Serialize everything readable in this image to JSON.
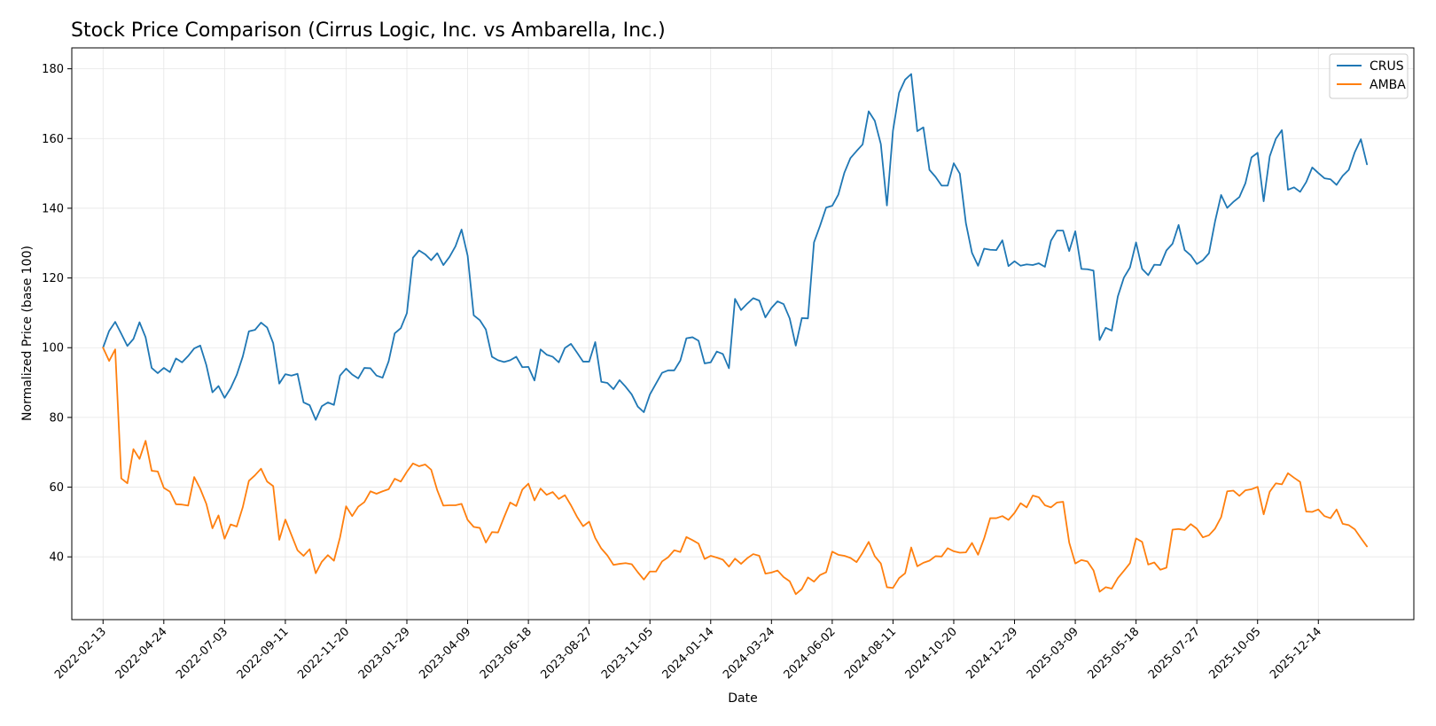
{
  "colors": {
    "CRUS": "#1f77b4",
    "AMBA": "#ff7f0e",
    "grid": "#e6e6e6",
    "axis": "#000000"
  },
  "chart_data": {
    "type": "line",
    "title": "Stock Price Comparison (Cirrus Logic, Inc. vs Ambarella, Inc.)",
    "xlabel": "Date",
    "ylabel": "Normalized Price (base 100)",
    "ylim": [
      22,
      186
    ],
    "xlim": [
      "2022-01-08",
      "2026-04-03"
    ],
    "grid": true,
    "legend_position": "top-right",
    "x_ticks": [
      "2022-02-13",
      "2022-04-24",
      "2022-07-03",
      "2022-09-11",
      "2022-11-20",
      "2023-01-29",
      "2023-04-09",
      "2023-06-18",
      "2023-08-27",
      "2023-11-05",
      "2024-01-14",
      "2024-03-24",
      "2024-06-02",
      "2024-08-11",
      "2024-10-20",
      "2024-12-29",
      "2025-03-09",
      "2025-05-18",
      "2025-07-27",
      "2025-10-05",
      "2025-12-14"
    ],
    "y_ticks": [
      40,
      60,
      80,
      100,
      120,
      140,
      160,
      180
    ],
    "start_date": "2022-02-13",
    "step_days": 7,
    "series": [
      {
        "name": "CRUS",
        "values": [
          100,
          104.8,
          107.4,
          104,
          100.5,
          102.5,
          107.3,
          103,
          94.2,
          92.7,
          94.2,
          93,
          96.9,
          95.8,
          97.6,
          99.8,
          100.6,
          95,
          87.2,
          89,
          85.6,
          88.4,
          92.2,
          97.5,
          104.7,
          105.1,
          107.2,
          105.8,
          101.3,
          89.7,
          92.4,
          92,
          92.5,
          84.3,
          83.5,
          79.3,
          83.2,
          84.3,
          83.6,
          92,
          94,
          92.3,
          91.2,
          94.2,
          94.1,
          92,
          91.4,
          96.1,
          104.1,
          105.6,
          109.9,
          125.8,
          127.9,
          126.8,
          125.1,
          127.1,
          123.7,
          126,
          129.1,
          133.9,
          126.4,
          109.3,
          107.9,
          105.2,
          97.4,
          96.4,
          95.9,
          96.4,
          97.4,
          94.4,
          94.5,
          90.6,
          99.5,
          98,
          97.4,
          95.8,
          99.9,
          101.1,
          98.6,
          96,
          96,
          101.6,
          90.2,
          89.9,
          88.1,
          90.7,
          88.8,
          86.6,
          83.1,
          81.5,
          86.6,
          89.7,
          92.8,
          93.5,
          93.5,
          96.3,
          102.7,
          103,
          102,
          95.5,
          95.8,
          98.9,
          98.2,
          94.1,
          114,
          110.8,
          112.6,
          114.2,
          113.5,
          108.7,
          111.4,
          113.3,
          112.5,
          108.4,
          100.6,
          108.5,
          108.4,
          130.2,
          135,
          140.2,
          140.7,
          143.9,
          150.2,
          154.4,
          156.4,
          158.3,
          167.8,
          165.1,
          158.4,
          140.8,
          162.3,
          173.1,
          176.9,
          178.5,
          162.1,
          163.2,
          151,
          149,
          146.5,
          146.5,
          152.9,
          149.9,
          135.7,
          127.2,
          123.5,
          128.4,
          128.1,
          128,
          130.8,
          123.4,
          124.8,
          123.5,
          123.9,
          123.7,
          124.2,
          123.2,
          130.7,
          133.6,
          133.6,
          127.7,
          133.4,
          122.6,
          122.5,
          122.1,
          102.2,
          105.7,
          104.9,
          114.7,
          120.1,
          123,
          130.2,
          122.6,
          120.8,
          123.8,
          123.7,
          127.9,
          129.8,
          135.2,
          128,
          126.5,
          124,
          125.1,
          127.1,
          136.2,
          143.8,
          140.1,
          141.8,
          143.2,
          147.2,
          154.6,
          155.9,
          142,
          154.9,
          159.9,
          162.4,
          145.3,
          146,
          144.7,
          147.5,
          151.7,
          150.1,
          148.6,
          148.3,
          146.7,
          149.3,
          151,
          156.1,
          159.8,
          152.6
        ]
      },
      {
        "name": "AMBA",
        "values": [
          100,
          96.2,
          99.5,
          62.5,
          61.1,
          70.9,
          68.1,
          73.3,
          64.7,
          64.5,
          59.8,
          58.7,
          55.1,
          55,
          54.7,
          62.9,
          59.5,
          55.2,
          48.2,
          51.9,
          45.2,
          49.3,
          48.7,
          54.3,
          61.8,
          63.4,
          65.3,
          61.6,
          60.3,
          44.9,
          50.7,
          46.3,
          41.9,
          40.3,
          42.2,
          35.3,
          38.6,
          40.5,
          38.9,
          45.6,
          54.5,
          51.7,
          54.4,
          55.7,
          58.8,
          58.1,
          58.8,
          59.4,
          62.4,
          61.6,
          64.4,
          66.8,
          66,
          66.5,
          65,
          59.1,
          54.7,
          54.8,
          54.8,
          55.2,
          50.6,
          48.6,
          48.3,
          44.1,
          47.1,
          47,
          51.4,
          55.6,
          54.6,
          59.3,
          61,
          56.2,
          59.6,
          57.8,
          58.6,
          56.6,
          57.7,
          54.8,
          51.5,
          48.8,
          50.1,
          45.4,
          42.4,
          40.4,
          37.7,
          38,
          38.2,
          37.9,
          35.6,
          33.5,
          35.8,
          35.8,
          38.7,
          39.9,
          41.9,
          41.4,
          45.7,
          44.8,
          43.8,
          39.4,
          40.3,
          39.8,
          39.2,
          37.2,
          39.5,
          38,
          39.6,
          40.8,
          40.3,
          35.2,
          35.5,
          36.1,
          34.2,
          33,
          29.3,
          30.8,
          34.1,
          32.9,
          34.8,
          35.6,
          41.5,
          40.6,
          40.3,
          39.7,
          38.5,
          41.2,
          44.3,
          40.2,
          38.1,
          31.3,
          31.1,
          33.9,
          35.3,
          42.7,
          37.3,
          38.3,
          38.9,
          40.2,
          40.1,
          42.5,
          41.6,
          41.2,
          41.3,
          44,
          40.6,
          45.3,
          51.1,
          51.1,
          51.7,
          50.6,
          52.6,
          55.4,
          54.2,
          57.6,
          57.1,
          54.8,
          54.2,
          55.6,
          55.8,
          44.1,
          38.1,
          39.1,
          38.7,
          36.1,
          30,
          31.3,
          30.9,
          33.9,
          36,
          38.2,
          45.3,
          44.3,
          37.8,
          38.4,
          36.3,
          36.9,
          47.8,
          48,
          47.7,
          49.4,
          48.1,
          45.6,
          46.2,
          48.1,
          51.4,
          58.8,
          59,
          57.5,
          59.1,
          59.4,
          60.1,
          52.2,
          58.7,
          61.1,
          60.8,
          64,
          62.7,
          61.5,
          53,
          52.9,
          53.6,
          51.7,
          51.1,
          53.6,
          49.5,
          49.1,
          47.9,
          45.4,
          43
        ]
      }
    ]
  }
}
